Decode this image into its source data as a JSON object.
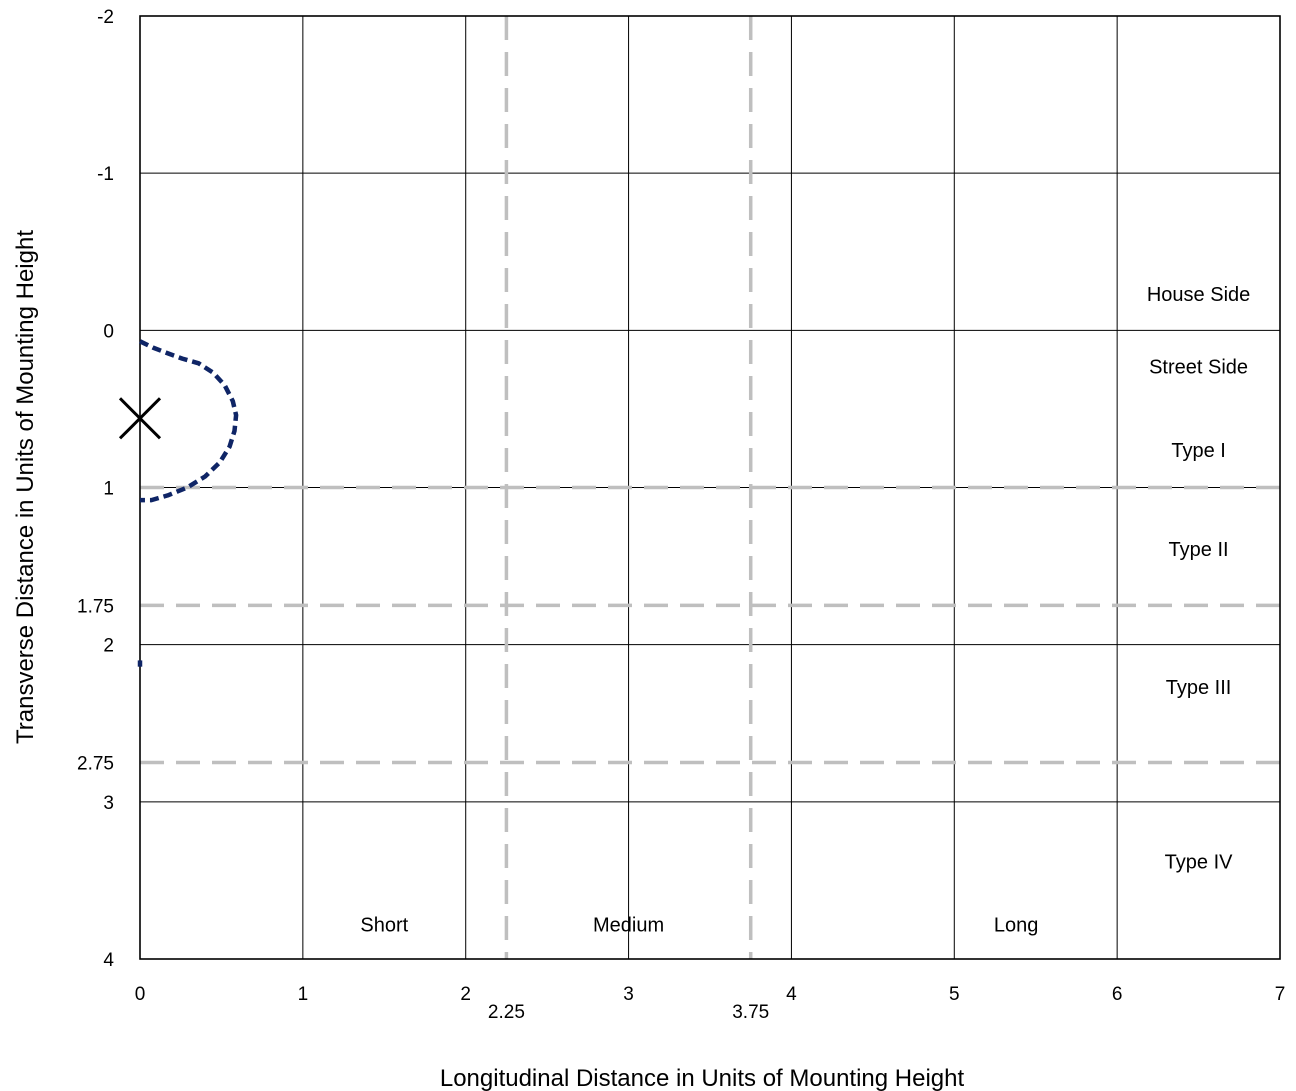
{
  "chart_data": {
    "type": "scatter",
    "title": "",
    "xlabel": "Longitudinal Distance in Units of Mounting Height",
    "ylabel": "Transverse Distance in Units of Mounting Height",
    "xlim": [
      0,
      7
    ],
    "ylim": [
      -2,
      4
    ],
    "y_axis_inverted": true,
    "grid": true,
    "x_ticks": [
      {
        "value": 0,
        "label": "0"
      },
      {
        "value": 1,
        "label": "1"
      },
      {
        "value": 2,
        "label": "2"
      },
      {
        "value": 3,
        "label": "3"
      },
      {
        "value": 4,
        "label": "4"
      },
      {
        "value": 5,
        "label": "5"
      },
      {
        "value": 6,
        "label": "6"
      },
      {
        "value": 7,
        "label": "7"
      }
    ],
    "x_extra_ticks": [
      {
        "value": 2.25,
        "label": "2.25"
      },
      {
        "value": 3.75,
        "label": "3.75"
      }
    ],
    "y_ticks": [
      {
        "value": -2,
        "label": "-2"
      },
      {
        "value": -1,
        "label": "-1"
      },
      {
        "value": 0,
        "label": "0"
      },
      {
        "value": 1,
        "label": "1"
      },
      {
        "value": 2,
        "label": "2"
      },
      {
        "value": 3,
        "label": "3"
      },
      {
        "value": 4,
        "label": "4"
      }
    ],
    "y_extra_ticks": [
      {
        "value": 1.75,
        "label": "1.75"
      },
      {
        "value": 2.75,
        "label": "2.75"
      }
    ],
    "reference_lines": {
      "color": "#bfbfbf",
      "vertical": [
        2.25,
        3.75
      ],
      "horizontal": [
        1,
        1.75,
        2.75
      ]
    },
    "zone_labels": [
      {
        "text": "House Side",
        "x": 6.5,
        "y": -0.23
      },
      {
        "text": "Street Side",
        "x": 6.5,
        "y": 0.23
      },
      {
        "text": "Type I",
        "x": 6.5,
        "y": 0.76
      },
      {
        "text": "Type II",
        "x": 6.5,
        "y": 1.39
      },
      {
        "text": "Type III",
        "x": 6.5,
        "y": 2.27
      },
      {
        "text": "Type IV",
        "x": 6.5,
        "y": 3.38
      },
      {
        "text": "Short",
        "x": 1.5,
        "y": 3.78
      },
      {
        "text": "Medium",
        "x": 3.0,
        "y": 3.78
      },
      {
        "text": "Long",
        "x": 5.38,
        "y": 3.78
      }
    ],
    "series": [
      {
        "color": "#0f2566",
        "style": "dashed",
        "marker": "none",
        "points": [
          [
            0.0,
            0.07
          ],
          [
            0.08,
            0.11
          ],
          [
            0.18,
            0.15
          ],
          [
            0.26,
            0.18
          ],
          [
            0.36,
            0.21
          ],
          [
            0.45,
            0.27
          ],
          [
            0.52,
            0.35
          ],
          [
            0.57,
            0.45
          ],
          [
            0.59,
            0.54
          ],
          [
            0.58,
            0.64
          ],
          [
            0.55,
            0.74
          ],
          [
            0.49,
            0.84
          ],
          [
            0.4,
            0.93
          ],
          [
            0.29,
            1.0
          ],
          [
            0.17,
            1.05
          ],
          [
            0.07,
            1.08
          ],
          [
            0.0,
            1.08
          ]
        ]
      },
      {
        "color": "#0f2566",
        "style": "dashed",
        "marker": "none",
        "points": [
          [
            0.0,
            2.1
          ],
          [
            0.0,
            2.14
          ]
        ]
      }
    ],
    "marker": {
      "type": "x",
      "x": 0.0,
      "y": 0.56,
      "color": "#000000"
    }
  }
}
